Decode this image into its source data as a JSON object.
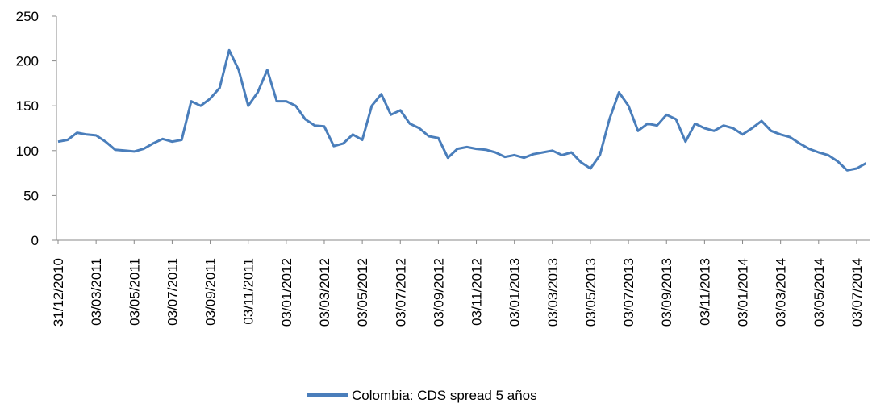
{
  "chart_data": {
    "type": "line",
    "categories": [
      "31/12/2010",
      null,
      null,
      null,
      "03/03/2011",
      null,
      null,
      null,
      "03/05/2011",
      null,
      null,
      null,
      "03/07/2011",
      null,
      null,
      null,
      "03/09/2011",
      null,
      null,
      null,
      "03/11/2011",
      null,
      null,
      null,
      "03/01/2012",
      null,
      null,
      null,
      "03/03/2012",
      null,
      null,
      null,
      "03/05/2012",
      null,
      null,
      null,
      "03/07/2012",
      null,
      null,
      null,
      "03/09/2012",
      null,
      null,
      null,
      "03/11/2012",
      null,
      null,
      null,
      "03/01/2013",
      null,
      null,
      null,
      "03/03/2013",
      null,
      null,
      null,
      "03/05/2013",
      null,
      null,
      null,
      "03/07/2013",
      null,
      null,
      null,
      "03/09/2013",
      null,
      null,
      null,
      "03/11/2013",
      null,
      null,
      null,
      "03/01/2014",
      null,
      null,
      null,
      "03/03/2014",
      null,
      null,
      null,
      "03/05/2014",
      null,
      null,
      null,
      "03/07/2014",
      null
    ],
    "series": [
      {
        "name": "Colombia: CDS spread 5 años",
        "color": "#4a7ebb",
        "values": [
          110,
          112,
          120,
          118,
          117,
          110,
          101,
          100,
          99,
          102,
          108,
          113,
          110,
          112,
          155,
          150,
          158,
          170,
          212,
          190,
          150,
          165,
          190,
          155,
          155,
          150,
          135,
          128,
          127,
          105,
          108,
          118,
          112,
          150,
          163,
          140,
          145,
          130,
          125,
          116,
          114,
          92,
          102,
          104,
          102,
          101,
          98,
          93,
          95,
          92,
          96,
          98,
          100,
          95,
          98,
          87,
          80,
          95,
          135,
          165,
          150,
          122,
          130,
          128,
          140,
          135,
          110,
          130,
          125,
          122,
          128,
          125,
          118,
          125,
          133,
          122,
          118,
          115,
          108,
          102,
          98,
          95,
          88,
          78,
          80,
          86
        ]
      }
    ],
    "ylim": [
      0,
      250
    ],
    "yticks": [
      0,
      50,
      100,
      150,
      200,
      250
    ],
    "grid": false,
    "legend": "bottom"
  }
}
